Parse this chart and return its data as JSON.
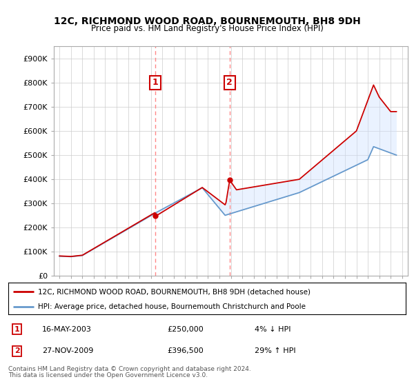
{
  "title": "12C, RICHMOND WOOD ROAD, BOURNEMOUTH, BH8 9DH",
  "subtitle": "Price paid vs. HM Land Registry's House Price Index (HPI)",
  "legend_line1": "12C, RICHMOND WOOD ROAD, BOURNEMOUTH, BH8 9DH (detached house)",
  "legend_line2": "HPI: Average price, detached house, Bournemouth Christchurch and Poole",
  "footer1": "Contains HM Land Registry data © Crown copyright and database right 2024.",
  "footer2": "This data is licensed under the Open Government Licence v3.0.",
  "yticks": [
    0,
    100000,
    200000,
    300000,
    400000,
    500000,
    600000,
    700000,
    800000,
    900000
  ],
  "ytick_labels": [
    "£0",
    "£100K",
    "£200K",
    "£300K",
    "£400K",
    "£500K",
    "£600K",
    "£700K",
    "£800K",
    "£900K"
  ],
  "ylim": [
    0,
    950000
  ],
  "sale1_date": "16-MAY-2003",
  "sale1_price": 250000,
  "sale1_pct": "4% ↓ HPI",
  "sale2_date": "27-NOV-2009",
  "sale2_price": 396500,
  "sale2_pct": "29% ↑ HPI",
  "red_color": "#cc0000",
  "blue_color": "#6699cc",
  "shade_color": "#cce0ff",
  "marker_box_color": "#cc0000",
  "vline_color": "#ff8888",
  "bg_color": "#ffffff",
  "grid_color": "#cccccc",
  "sale1_x": 2003.37,
  "sale2_x": 2009.9,
  "xmin": 1994.5,
  "xmax": 2025.5,
  "x_start": 1995.0,
  "x_end": 2024.5,
  "n_points": 355
}
